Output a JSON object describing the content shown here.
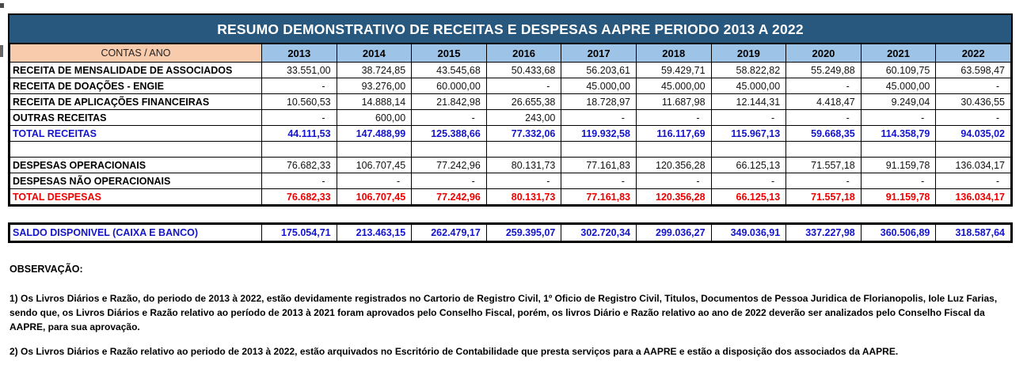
{
  "title": "RESUMO DEMONSTRATIVO DE RECEITAS E DESPESAS AAPRE PERIODO 2013 A 2022",
  "colors": {
    "title_bar": "#29587E",
    "year_header": "#9DC3E6",
    "contas_header": "#F8CBAD",
    "total_receitas_text": "#1414cc",
    "total_despesas_text": "#ee0000",
    "saldo_text": "#1414cc"
  },
  "table": {
    "header": {
      "contas_label": "CONTAS / ANO",
      "years": [
        "2013",
        "2014",
        "2015",
        "2016",
        "2017",
        "2018",
        "2019",
        "2020",
        "2021",
        "2022"
      ]
    },
    "rows": [
      {
        "label": "RECEITA DE MENSALIDADE DE ASSOCIADOS",
        "style": "normal",
        "values": [
          "33.551,00",
          "38.724,85",
          "43.545,68",
          "50.433,68",
          "56.203,61",
          "59.429,71",
          "58.822,82",
          "55.249,88",
          "60.109,75",
          "63.598,47"
        ]
      },
      {
        "label": "RECEITA DE DOAÇÕES - ENGIE",
        "style": "normal",
        "values": [
          "-",
          "93.276,00",
          "60.000,00",
          "-",
          "45.000,00",
          "45.000,00",
          "45.000,00",
          "-",
          "45.000,00",
          "-"
        ]
      },
      {
        "label": "RECEITA DE APLICAÇÕES FINANCEIRAS",
        "style": "normal",
        "values": [
          "10.560,53",
          "14.888,14",
          "21.842,98",
          "26.655,38",
          "18.728,97",
          "11.687,98",
          "12.144,31",
          "4.418,47",
          "9.249,04",
          "30.436,55"
        ]
      },
      {
        "label": "OUTRAS RECEITAS",
        "style": "normal",
        "values": [
          "-",
          "600,00",
          "-",
          "243,00",
          "-",
          "-",
          "-",
          "-",
          "-",
          "-"
        ]
      },
      {
        "label": "TOTAL RECEITAS",
        "style": "total-receitas",
        "values": [
          "44.111,53",
          "147.488,99",
          "125.388,66",
          "77.332,06",
          "119.932,58",
          "116.117,69",
          "115.967,13",
          "59.668,35",
          "114.358,79",
          "94.035,02"
        ]
      },
      {
        "label": "",
        "style": "empty",
        "values": [
          "",
          "",
          "",
          "",
          "",
          "",
          "",
          "",
          "",
          ""
        ]
      },
      {
        "label": "DESPESAS OPERACIONAIS",
        "style": "normal",
        "values": [
          "76.682,33",
          "106.707,45",
          "77.242,96",
          "80.131,73",
          "77.161,83",
          "120.356,28",
          "66.125,13",
          "71.557,18",
          "91.159,78",
          "136.034,17"
        ]
      },
      {
        "label": "DESPESAS NÃO OPERACIONAIS",
        "style": "normal",
        "values": [
          "-",
          "-",
          "-",
          "-",
          "-",
          "-",
          "-",
          "-",
          "-",
          "-"
        ]
      },
      {
        "label": "TOTAL DESPESAS",
        "style": "total-despesas",
        "values": [
          "76.682,33",
          "106.707,45",
          "77.242,96",
          "80.131,73",
          "77.161,83",
          "120.356,28",
          "66.125,13",
          "71.557,18",
          "91.159,78",
          "136.034,17"
        ]
      }
    ],
    "saldo_row": {
      "label": "SALDO DISPONIVEL (CAIXA E BANCO)",
      "style": "saldo",
      "values": [
        "175.054,71",
        "213.463,15",
        "262.479,17",
        "259.395,07",
        "302.720,34",
        "299.036,27",
        "349.036,91",
        "337.227,98",
        "360.506,89",
        "318.587,64"
      ]
    }
  },
  "observacao": {
    "heading": "OBSERVAÇÃO:",
    "p1": "1) Os Livros Diários e Razão, do periodo de 2013 à 2022, estão devidamente registrados no Cartorio de Registro Civil, 1º Oficio de Registro Civil, Titulos, Documentos de Pessoa Juridica de Florianopolis, Iole Luz Farias, sendo que, os Livros Diários e Razão relativo ao período de 2013 à 2021 foram aprovados pelo Conselho Fiscal, porém, os livros Diário e Razão relativo ao ano de 2022 deverão ser analizados pelo Conselho Fiscal da AAPRE, para sua aprovação.",
    "p2": "2) Os Livros Diários e Razão relativo ao periodo de 2013 à 2022, estão arquivados no Escritório de Contabilidade que presta serviços para a AAPRE e estão a disposição dos associados da AAPRE."
  }
}
